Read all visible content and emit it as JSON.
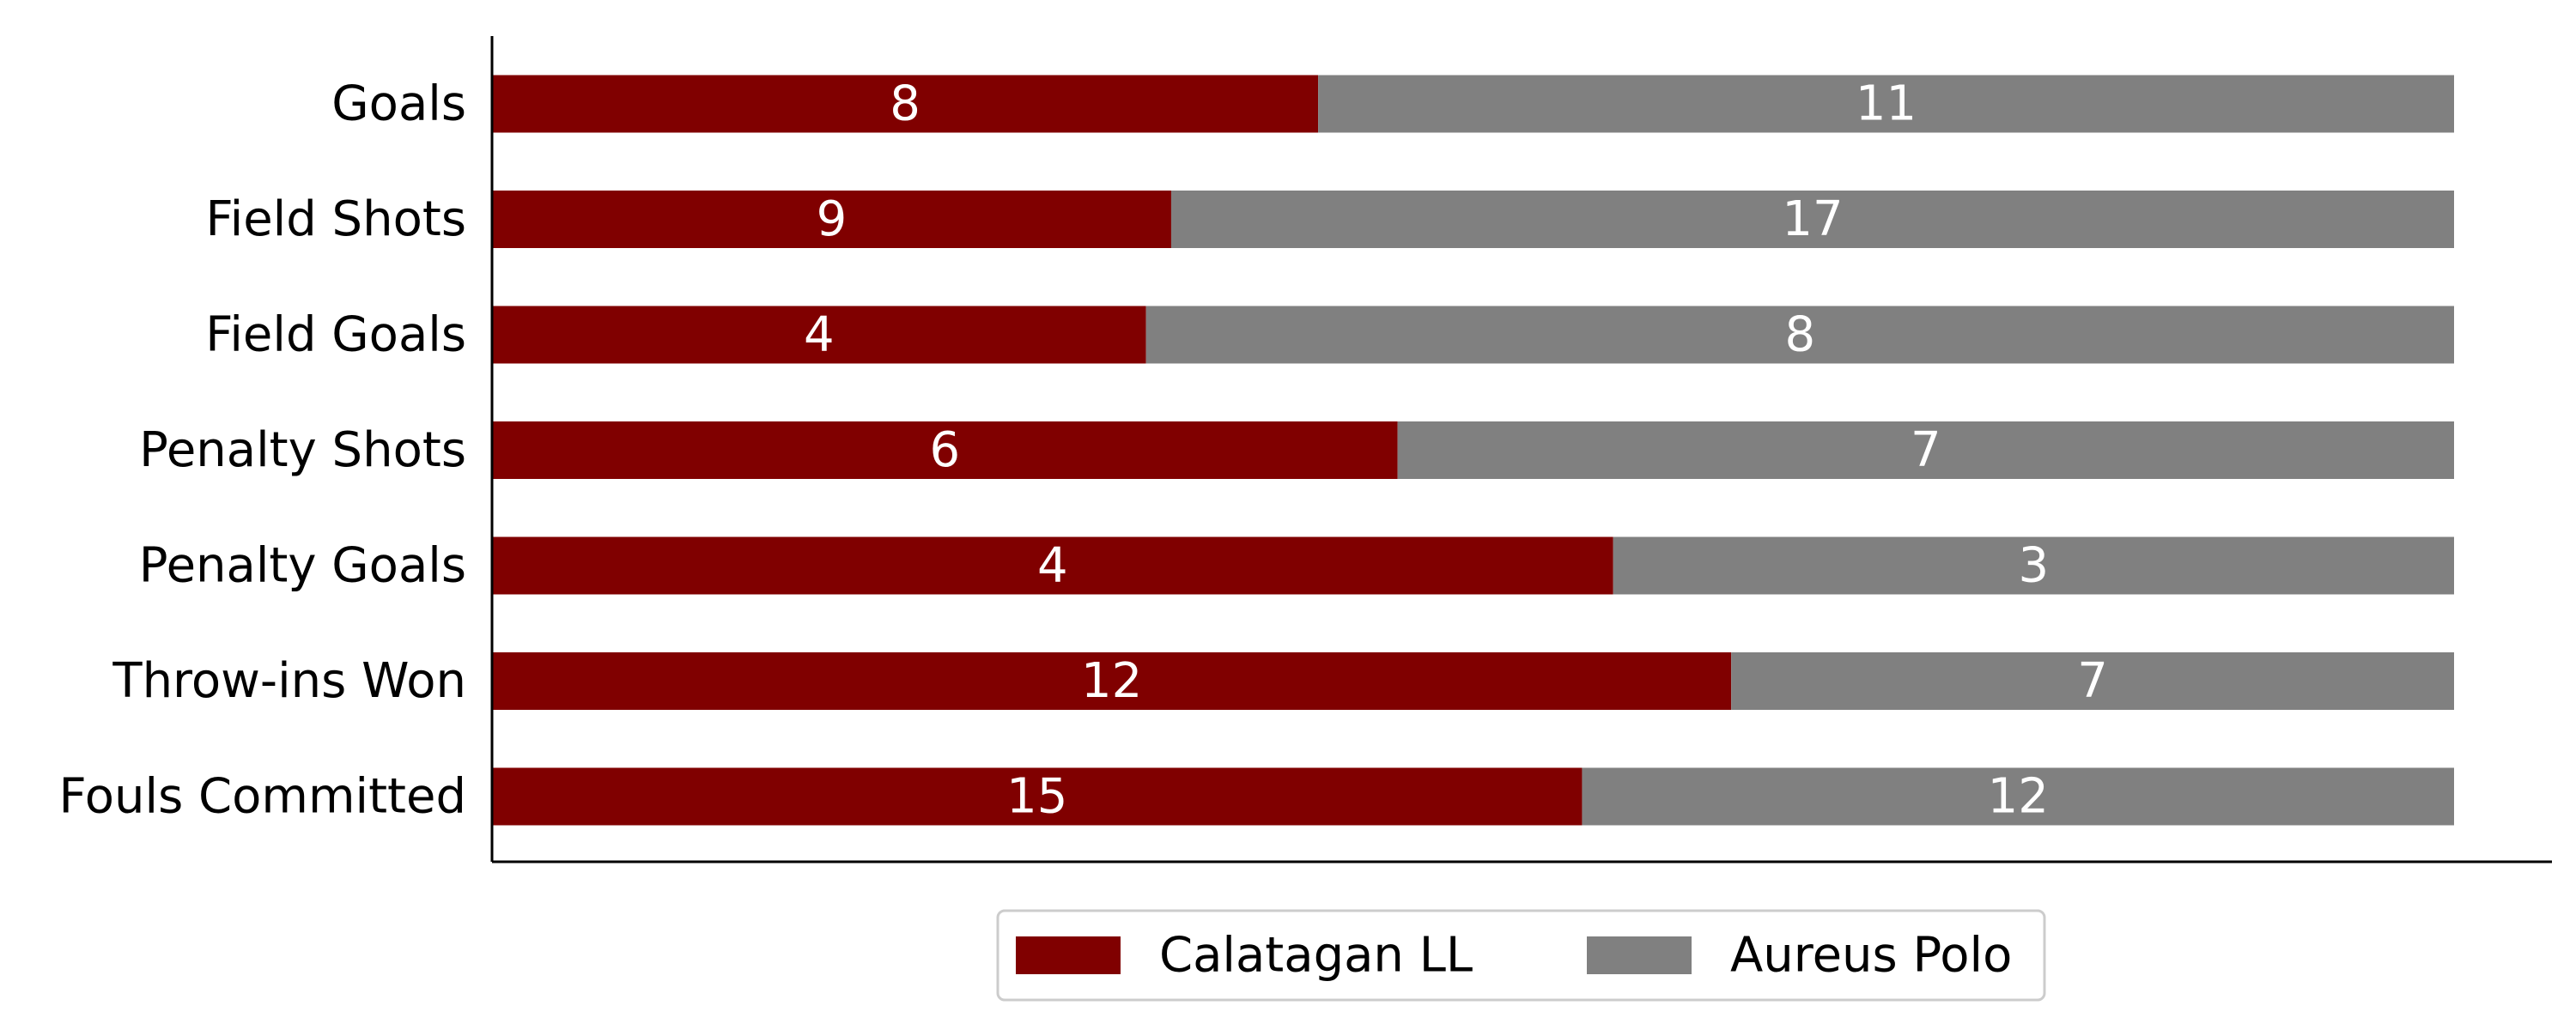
{
  "chart_data": {
    "type": "bar",
    "orientation": "horizontal",
    "stacked": "normalized",
    "categories": [
      "Goals",
      "Field Shots",
      "Field Goals",
      "Penalty Shots",
      "Penalty Goals",
      "Throw-ins Won",
      "Fouls Committed"
    ],
    "series": [
      {
        "name": "Calatagan LL",
        "color": "#800000",
        "values": [
          8,
          9,
          4,
          6,
          4,
          12,
          15
        ]
      },
      {
        "name": "Aureus Polo",
        "color": "#808080",
        "values": [
          11,
          17,
          8,
          7,
          3,
          7,
          12
        ]
      }
    ],
    "title": "",
    "xlabel": "",
    "ylabel": "",
    "grid": false,
    "legend_position": "bottom-center",
    "bar_label_color": "#ffffff"
  }
}
